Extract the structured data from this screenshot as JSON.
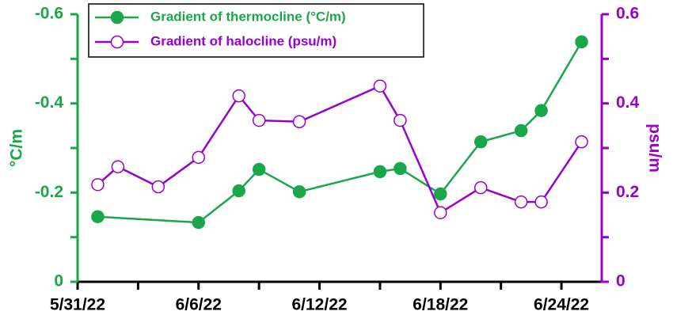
{
  "chart_data": {
    "type": "line",
    "ylabel": "°C/m",
    "y2label": "psu/m",
    "xlim": [
      "5/31/22",
      "6/26/22"
    ],
    "xticks": [
      "5/31/22",
      "6/6/22",
      "6/12/22",
      "6/18/22",
      "6/24/22"
    ],
    "ylim": [
      0,
      -0.6
    ],
    "yticks": [
      0,
      -0.2,
      -0.4,
      -0.6
    ],
    "ycolor": "#1aa64a",
    "y2lim": [
      0,
      0.6
    ],
    "y2ticks": [
      0,
      0.2,
      0.4,
      0.6
    ],
    "y2color": "#9900cc",
    "legend": "top-left",
    "series": [
      {
        "name": "Gradient of thermocline (°C/m)",
        "color": "#1aa64a",
        "marker": "filled",
        "x": [
          "6/1/22",
          "6/6/22",
          "6/8/22",
          "6/9/22",
          "6/11/22",
          "6/15/22",
          "6/16/22",
          "6/18/22",
          "6/20/22",
          "6/22/22",
          "6/23/22",
          "6/25/22"
        ],
        "values": [
          -0.146,
          -0.133,
          -0.204,
          -0.252,
          -0.202,
          -0.247,
          -0.254,
          -0.197,
          -0.314,
          -0.339,
          -0.384,
          -0.538
        ]
      },
      {
        "name": "Gradient of halocline (psu/m)",
        "color": "#9900cc",
        "marker": "open",
        "axis": "y2",
        "x": [
          "6/1/22",
          "6/2/22",
          "6/4/22",
          "6/6/22",
          "6/8/22",
          "6/9/22",
          "6/11/22",
          "6/15/22",
          "6/16/22",
          "6/18/22",
          "6/20/22",
          "6/22/22",
          "6/23/22",
          "6/25/22"
        ],
        "values": [
          0.218,
          0.258,
          0.213,
          0.279,
          0.417,
          0.362,
          0.359,
          0.439,
          0.362,
          0.155,
          0.211,
          0.179,
          0.179,
          0.314
        ]
      }
    ]
  }
}
